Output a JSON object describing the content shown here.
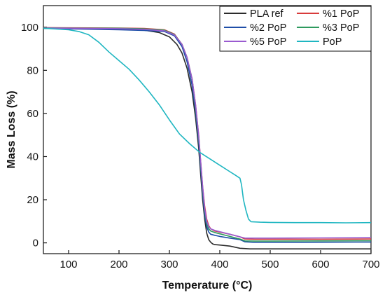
{
  "chart_data": {
    "type": "line",
    "xlabel": "Temperature (°C)",
    "ylabel": "Mass Loss (%)",
    "xlim": [
      50,
      700
    ],
    "ylim": [
      -5,
      110
    ],
    "xticks": [
      100,
      200,
      300,
      400,
      500,
      600,
      700
    ],
    "yticks": [
      0,
      20,
      40,
      60,
      80,
      100
    ],
    "grid": false,
    "legend_position": "top-right",
    "series": [
      {
        "name": "PLA ref",
        "color": "#2b2b2b",
        "x": [
          50,
          100,
          200,
          250,
          280,
          300,
          315,
          325,
          335,
          345,
          352,
          358,
          362,
          366,
          370,
          374,
          378,
          382,
          386,
          390,
          400,
          420,
          440,
          460,
          500,
          600,
          700
        ],
        "y": [
          99.5,
          99.3,
          99.0,
          98.6,
          97.5,
          95.5,
          92,
          88,
          81,
          70,
          58,
          44,
          32,
          20,
          11,
          4.5,
          1.5,
          0.3,
          -0.5,
          -0.8,
          -1.0,
          -1.5,
          -2.5,
          -2.8,
          -2.8,
          -2.8,
          -2.8
        ]
      },
      {
        "name": "%1 PoP",
        "color": "#d83b3b",
        "x": [
          50,
          100,
          200,
          250,
          290,
          310,
          325,
          335,
          345,
          352,
          358,
          362,
          366,
          370,
          374,
          378,
          382,
          390,
          400,
          420,
          440,
          450,
          470,
          500,
          600,
          700
        ],
        "y": [
          99.8,
          99.7,
          99.6,
          99.4,
          98.8,
          96.8,
          92,
          86,
          76,
          64,
          50,
          38,
          26,
          17,
          11,
          8,
          6.5,
          5.5,
          5.0,
          4.0,
          2.8,
          1.8,
          1.7,
          1.7,
          1.7,
          1.8
        ]
      },
      {
        "name": "%2 PoP",
        "color": "#1f4ea8",
        "x": [
          50,
          100,
          200,
          250,
          290,
          310,
          325,
          335,
          345,
          352,
          358,
          362,
          366,
          370,
          374,
          378,
          382,
          390,
          400,
          420,
          440,
          450,
          470,
          500,
          600,
          700
        ],
        "y": [
          99.5,
          99.2,
          98.8,
          98.5,
          98.0,
          96.0,
          91,
          84,
          73,
          61,
          47,
          35,
          23,
          13,
          7.5,
          5,
          4,
          3.5,
          3.0,
          2.2,
          1.5,
          0.5,
          0.2,
          0.2,
          0.3,
          0.4
        ]
      },
      {
        "name": "%3 PoP",
        "color": "#2e9a5e",
        "x": [
          50,
          100,
          200,
          250,
          290,
          310,
          325,
          335,
          345,
          352,
          358,
          362,
          366,
          370,
          374,
          378,
          382,
          390,
          400,
          420,
          440,
          450,
          470,
          500,
          600,
          700
        ],
        "y": [
          99.7,
          99.6,
          99.5,
          99.2,
          98.6,
          96.6,
          92,
          86,
          76,
          63,
          49,
          37,
          25,
          15,
          9,
          6.5,
          5.5,
          4.8,
          4.2,
          3.0,
          1.8,
          0.9,
          0.8,
          0.8,
          0.9,
          1.0
        ]
      },
      {
        "name": "%5 PoP",
        "color": "#9a5bd0",
        "x": [
          50,
          100,
          200,
          250,
          290,
          310,
          325,
          335,
          345,
          352,
          358,
          362,
          366,
          370,
          374,
          378,
          382,
          390,
          400,
          420,
          440,
          450,
          470,
          500,
          600,
          700
        ],
        "y": [
          99.6,
          99.5,
          99.3,
          99.0,
          98.3,
          96.4,
          92,
          86,
          76,
          64,
          50,
          38,
          26,
          16,
          10,
          7.5,
          6.5,
          5.8,
          5.2,
          4.0,
          2.8,
          2.2,
          2.2,
          2.2,
          2.3,
          2.4
        ]
      },
      {
        "name": "PoP",
        "color": "#1fb6c1",
        "x": [
          50,
          100,
          120,
          140,
          160,
          180,
          200,
          220,
          240,
          260,
          280,
          300,
          320,
          340,
          360,
          380,
          400,
          420,
          430,
          440,
          443,
          447,
          452,
          457,
          462,
          480,
          500,
          550,
          600,
          650,
          700
        ],
        "y": [
          99.5,
          98.8,
          98,
          96.5,
          93,
          88.5,
          84.5,
          80.5,
          75.5,
          70,
          64,
          57,
          50.5,
          46,
          42,
          39,
          36,
          33,
          31.5,
          30,
          27,
          20,
          15,
          11,
          9.8,
          9.6,
          9.5,
          9.4,
          9.4,
          9.3,
          9.4
        ]
      }
    ]
  }
}
